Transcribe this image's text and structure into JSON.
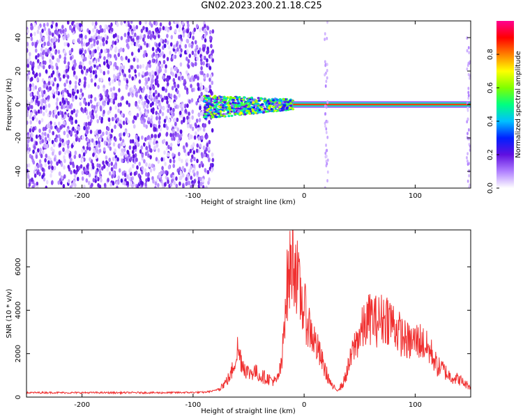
{
  "title": "GN02.2023.200.21.18.C25",
  "chart_data": [
    {
      "type": "heatmap",
      "xlabel": "Height of straight line (km)",
      "ylabel": "Frequency (Hz)",
      "xlim": [
        -250,
        150
      ],
      "ylim": [
        -50,
        50
      ],
      "xticks": [
        -200,
        -100,
        0,
        100
      ],
      "yticks": [
        40,
        20,
        0,
        -20,
        -40
      ],
      "colorbar": {
        "label": "Normalized spectral amplitude",
        "range": [
          0.0,
          1.0
        ],
        "ticks": [
          "0.0",
          "0.2",
          "0.4",
          "0.6",
          "0.8"
        ],
        "colormap": [
          "#ffffff",
          "#b080ff",
          "#6010e0",
          "#0020ff",
          "#00c0ff",
          "#00ff80",
          "#80ff00",
          "#ffff00",
          "#ff8000",
          "#ff0000",
          "#ff0090"
        ]
      },
      "regions": [
        {
          "description_x": [
            -250,
            -82
          ],
          "value": 0.12
        },
        {
          "description_x": [
            -90,
            -10
          ],
          "value": 0.45
        },
        {
          "description_x": [
            -10,
            150
          ],
          "value": 0.85
        }
      ]
    },
    {
      "type": "line",
      "xlabel": "Height of straight line (km)",
      "ylabel": "SNR (10 * v/v)",
      "xlim": [
        -250,
        150
      ],
      "ylim": [
        0,
        7700
      ],
      "xticks": [
        -200,
        -100,
        0,
        100
      ],
      "yticks": [
        0,
        2000,
        4000,
        6000
      ],
      "color": "#f03030",
      "series": [
        {
          "x": [
            -250,
            -230,
            -210,
            -190,
            -170,
            -150,
            -130,
            -110,
            -90,
            -80,
            -72,
            -66,
            -60,
            -55,
            -50,
            -45,
            -40,
            -35,
            -30,
            -25,
            -20,
            -17,
            -15,
            -12,
            -10,
            -8,
            -5,
            0,
            5,
            10,
            15,
            20,
            25,
            30,
            35,
            40,
            45,
            50,
            55,
            60,
            65,
            70,
            75,
            80,
            85,
            90,
            95,
            100,
            105,
            110,
            115,
            120,
            125,
            130,
            135,
            140,
            145,
            150
          ],
          "y": [
            200,
            210,
            200,
            205,
            200,
            205,
            200,
            210,
            220,
            300,
            600,
            1000,
            2200,
            1500,
            1100,
            1200,
            1000,
            900,
            800,
            700,
            1500,
            4500,
            5200,
            6000,
            6500,
            6200,
            5000,
            4000,
            3200,
            2500,
            1800,
            1100,
            500,
            300,
            600,
            1400,
            2300,
            2900,
            3300,
            3700,
            3500,
            3600,
            3700,
            3400,
            3000,
            2700,
            2500,
            2600,
            2600,
            2300,
            2000,
            1400,
            1300,
            1000,
            900,
            800,
            600,
            500
          ]
        }
      ]
    }
  ]
}
